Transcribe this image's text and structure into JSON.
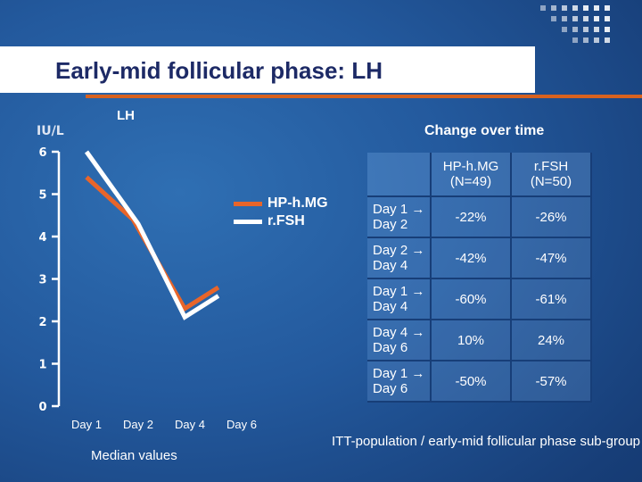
{
  "slide": {
    "title": "Early-mid follicular phase: LH"
  },
  "chart_data": {
    "type": "line",
    "title": "LH",
    "ylabel": "IU/L",
    "ylim": [
      0,
      6
    ],
    "yticks": [
      "0",
      "1",
      "2",
      "3",
      "4",
      "5",
      "6"
    ],
    "categories": [
      "Day 1",
      "Day 2",
      "Day 4",
      "Day 6"
    ],
    "series": [
      {
        "name": "HP-h.MG",
        "color": "#e8652a",
        "points": [
          [
            1,
            5.4
          ],
          [
            1.9,
            4.4
          ],
          [
            2.9,
            2.3
          ],
          [
            3.55,
            2.8
          ]
        ]
      },
      {
        "name": "r.FSH",
        "color": "#ffffff",
        "points": [
          [
            1,
            6.0
          ],
          [
            2.0,
            4.3
          ],
          [
            2.9,
            2.1
          ],
          [
            3.55,
            2.6
          ]
        ]
      }
    ],
    "caption": "Median values"
  },
  "change_table": {
    "title": "Change over time",
    "columns": [
      "HP-h.MG (N=49)",
      "r.FSH (N=50)"
    ],
    "rows": [
      {
        "label": "Day 1 → Day 2",
        "hp": "-22%",
        "rfsh": "-26%"
      },
      {
        "label": "Day 2 → Day 4",
        "hp": "-42%",
        "rfsh": "-47%"
      },
      {
        "label": "Day 1 → Day 4",
        "hp": "-60%",
        "rfsh": "-61%"
      },
      {
        "label": "Day 4 → Day 6",
        "hp": "10%",
        "rfsh": "24%"
      },
      {
        "label": "Day 1 → Day 6",
        "hp": "-50%",
        "rfsh": "-57%"
      }
    ],
    "footnote": "ITT-population / early-mid follicular phase sub-group"
  }
}
